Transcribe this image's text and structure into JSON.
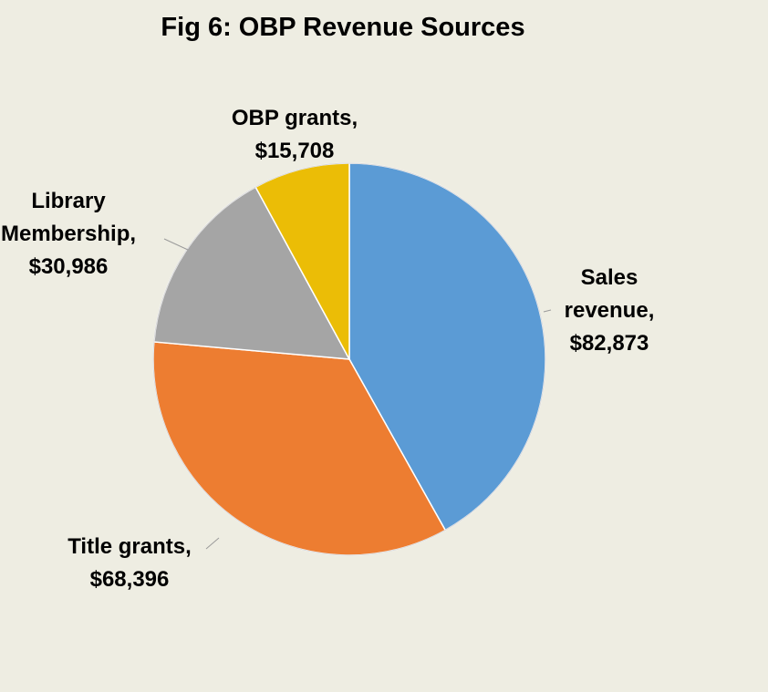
{
  "chart_data": {
    "type": "pie",
    "title": "Fig 6: OBP Revenue Sources",
    "slices": [
      {
        "label": "Sales revenue",
        "value": 82873,
        "value_label": "$82,873",
        "color": "#5b9bd5",
        "label_lines": [
          "Sales",
          "revenue,",
          "$82,873"
        ]
      },
      {
        "label": "Title grants",
        "value": 68396,
        "value_label": "$68,396",
        "color": "#ed7d31",
        "label_lines": [
          "Title grants,",
          "$68,396"
        ]
      },
      {
        "label": "Library Membership",
        "value": 30986,
        "value_label": "$30,986",
        "color": "#a5a5a5",
        "label_lines": [
          "Library",
          "Membership,",
          "$30,986"
        ]
      },
      {
        "label": "OBP grants",
        "value": 15708,
        "value_label": "$15,708",
        "color": "#ebbd06",
        "label_lines": [
          "OBP grants,",
          "$15,708"
        ]
      }
    ],
    "start_angle": "12 o'clock",
    "direction": "clockwise",
    "legend": "none",
    "background": "#eeede2"
  }
}
